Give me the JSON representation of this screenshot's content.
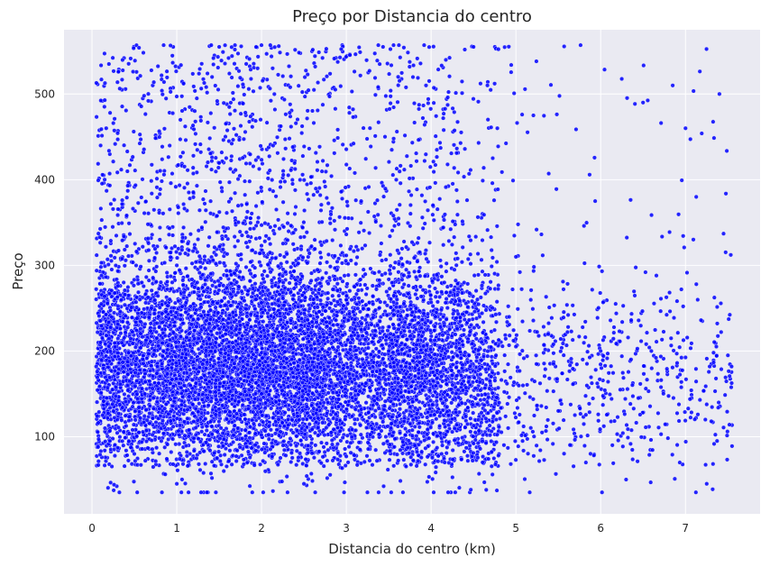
{
  "chart_data": {
    "type": "scatter",
    "title": "Preço por Distancia do centro",
    "xlabel": "Distancia do centro (km)",
    "ylabel": "Preço",
    "xlim": [
      -0.33,
      7.88
    ],
    "ylim": [
      10,
      575
    ],
    "xticks": [
      0,
      1,
      2,
      3,
      4,
      5,
      6,
      7
    ],
    "yticks": [
      100,
      200,
      300,
      400,
      500
    ],
    "grid": true,
    "legend": "none",
    "colors": {
      "point": "#0000ff",
      "point_edge": "#ffffff",
      "plot_bg": "#eaeaf2",
      "grid": "#ffffff"
    },
    "series": [
      {
        "point_count_estimate": 20000,
        "x_range": [
          0.05,
          7.55
        ],
        "y_range": [
          35,
          557
        ],
        "density_peak": {
          "x": 1.2,
          "y": 180
        },
        "sample_points": [
          [
            0.1,
            210
          ],
          [
            0.15,
            400
          ],
          [
            0.2,
            535
          ],
          [
            0.3,
            120
          ],
          [
            0.5,
            80
          ],
          [
            0.7,
            250
          ],
          [
            1.0,
            45
          ],
          [
            1.0,
            300
          ],
          [
            1.2,
            180
          ],
          [
            1.5,
            555
          ],
          [
            2.0,
            150
          ],
          [
            2.5,
            45
          ],
          [
            3.0,
            260
          ],
          [
            3.5,
            200
          ],
          [
            4.0,
            180
          ],
          [
            4.5,
            555
          ],
          [
            4.65,
            38
          ],
          [
            5.0,
            310
          ],
          [
            5.5,
            130
          ],
          [
            6.0,
            200
          ],
          [
            6.3,
            50
          ],
          [
            6.5,
            490
          ],
          [
            6.85,
            510
          ],
          [
            7.0,
            460
          ],
          [
            7.25,
            45
          ],
          [
            7.4,
            500
          ],
          [
            7.5,
            195
          ]
        ]
      }
    ]
  }
}
